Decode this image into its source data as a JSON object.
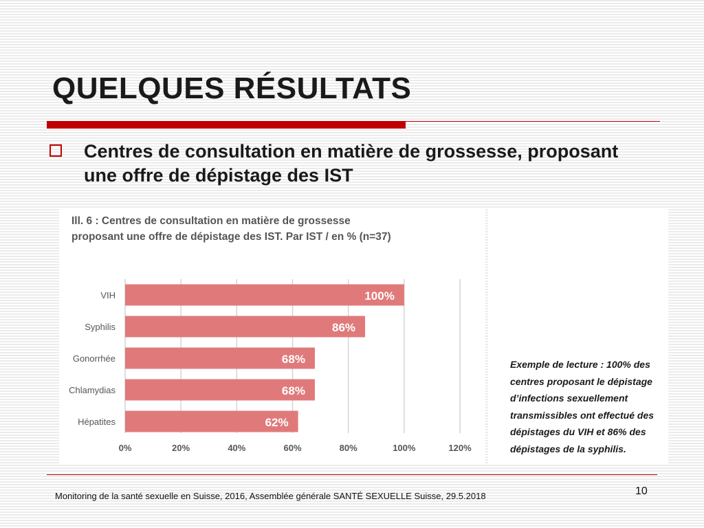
{
  "slide": {
    "title": "QUELQUES RÉSULTATS",
    "bullet": "Centres de consultation en matière de grossesse, proposant une offre de dépistage des IST",
    "reading_note": "Exemple de lecture : 100% des centres proposant le dépistage d’infections sexuellement transmissibles ont effectué des dépistages du VIH et 86% des dépistages de la syphilis.",
    "footer": "Monitoring de la santé sexuelle en Suisse, 2016, Assemblée générale SANTÉ SEXUELLE Suisse, 29.5.2018",
    "page_number": "10",
    "accent_color": "#c00000"
  },
  "chart_data": {
    "type": "bar",
    "orientation": "horizontal",
    "title": "Ill. 6 : Centres de consultation en matière de grossesse proposant une offre de dépistage des IST. Par IST / en % (n=37)",
    "categories": [
      "VIH",
      "Syphilis",
      "Gonorrhée",
      "Chlamydias",
      "Hépatites"
    ],
    "values": [
      100,
      86,
      68,
      68,
      62
    ],
    "data_labels": [
      "100%",
      "86%",
      "68%",
      "68%",
      "62%"
    ],
    "x_ticks": [
      "0%",
      "20%",
      "40%",
      "60%",
      "80%",
      "100%",
      "120%"
    ],
    "xlim": [
      0,
      120
    ],
    "grid": true,
    "bar_color": "#e07a7a",
    "label_color": "#ffffff"
  }
}
